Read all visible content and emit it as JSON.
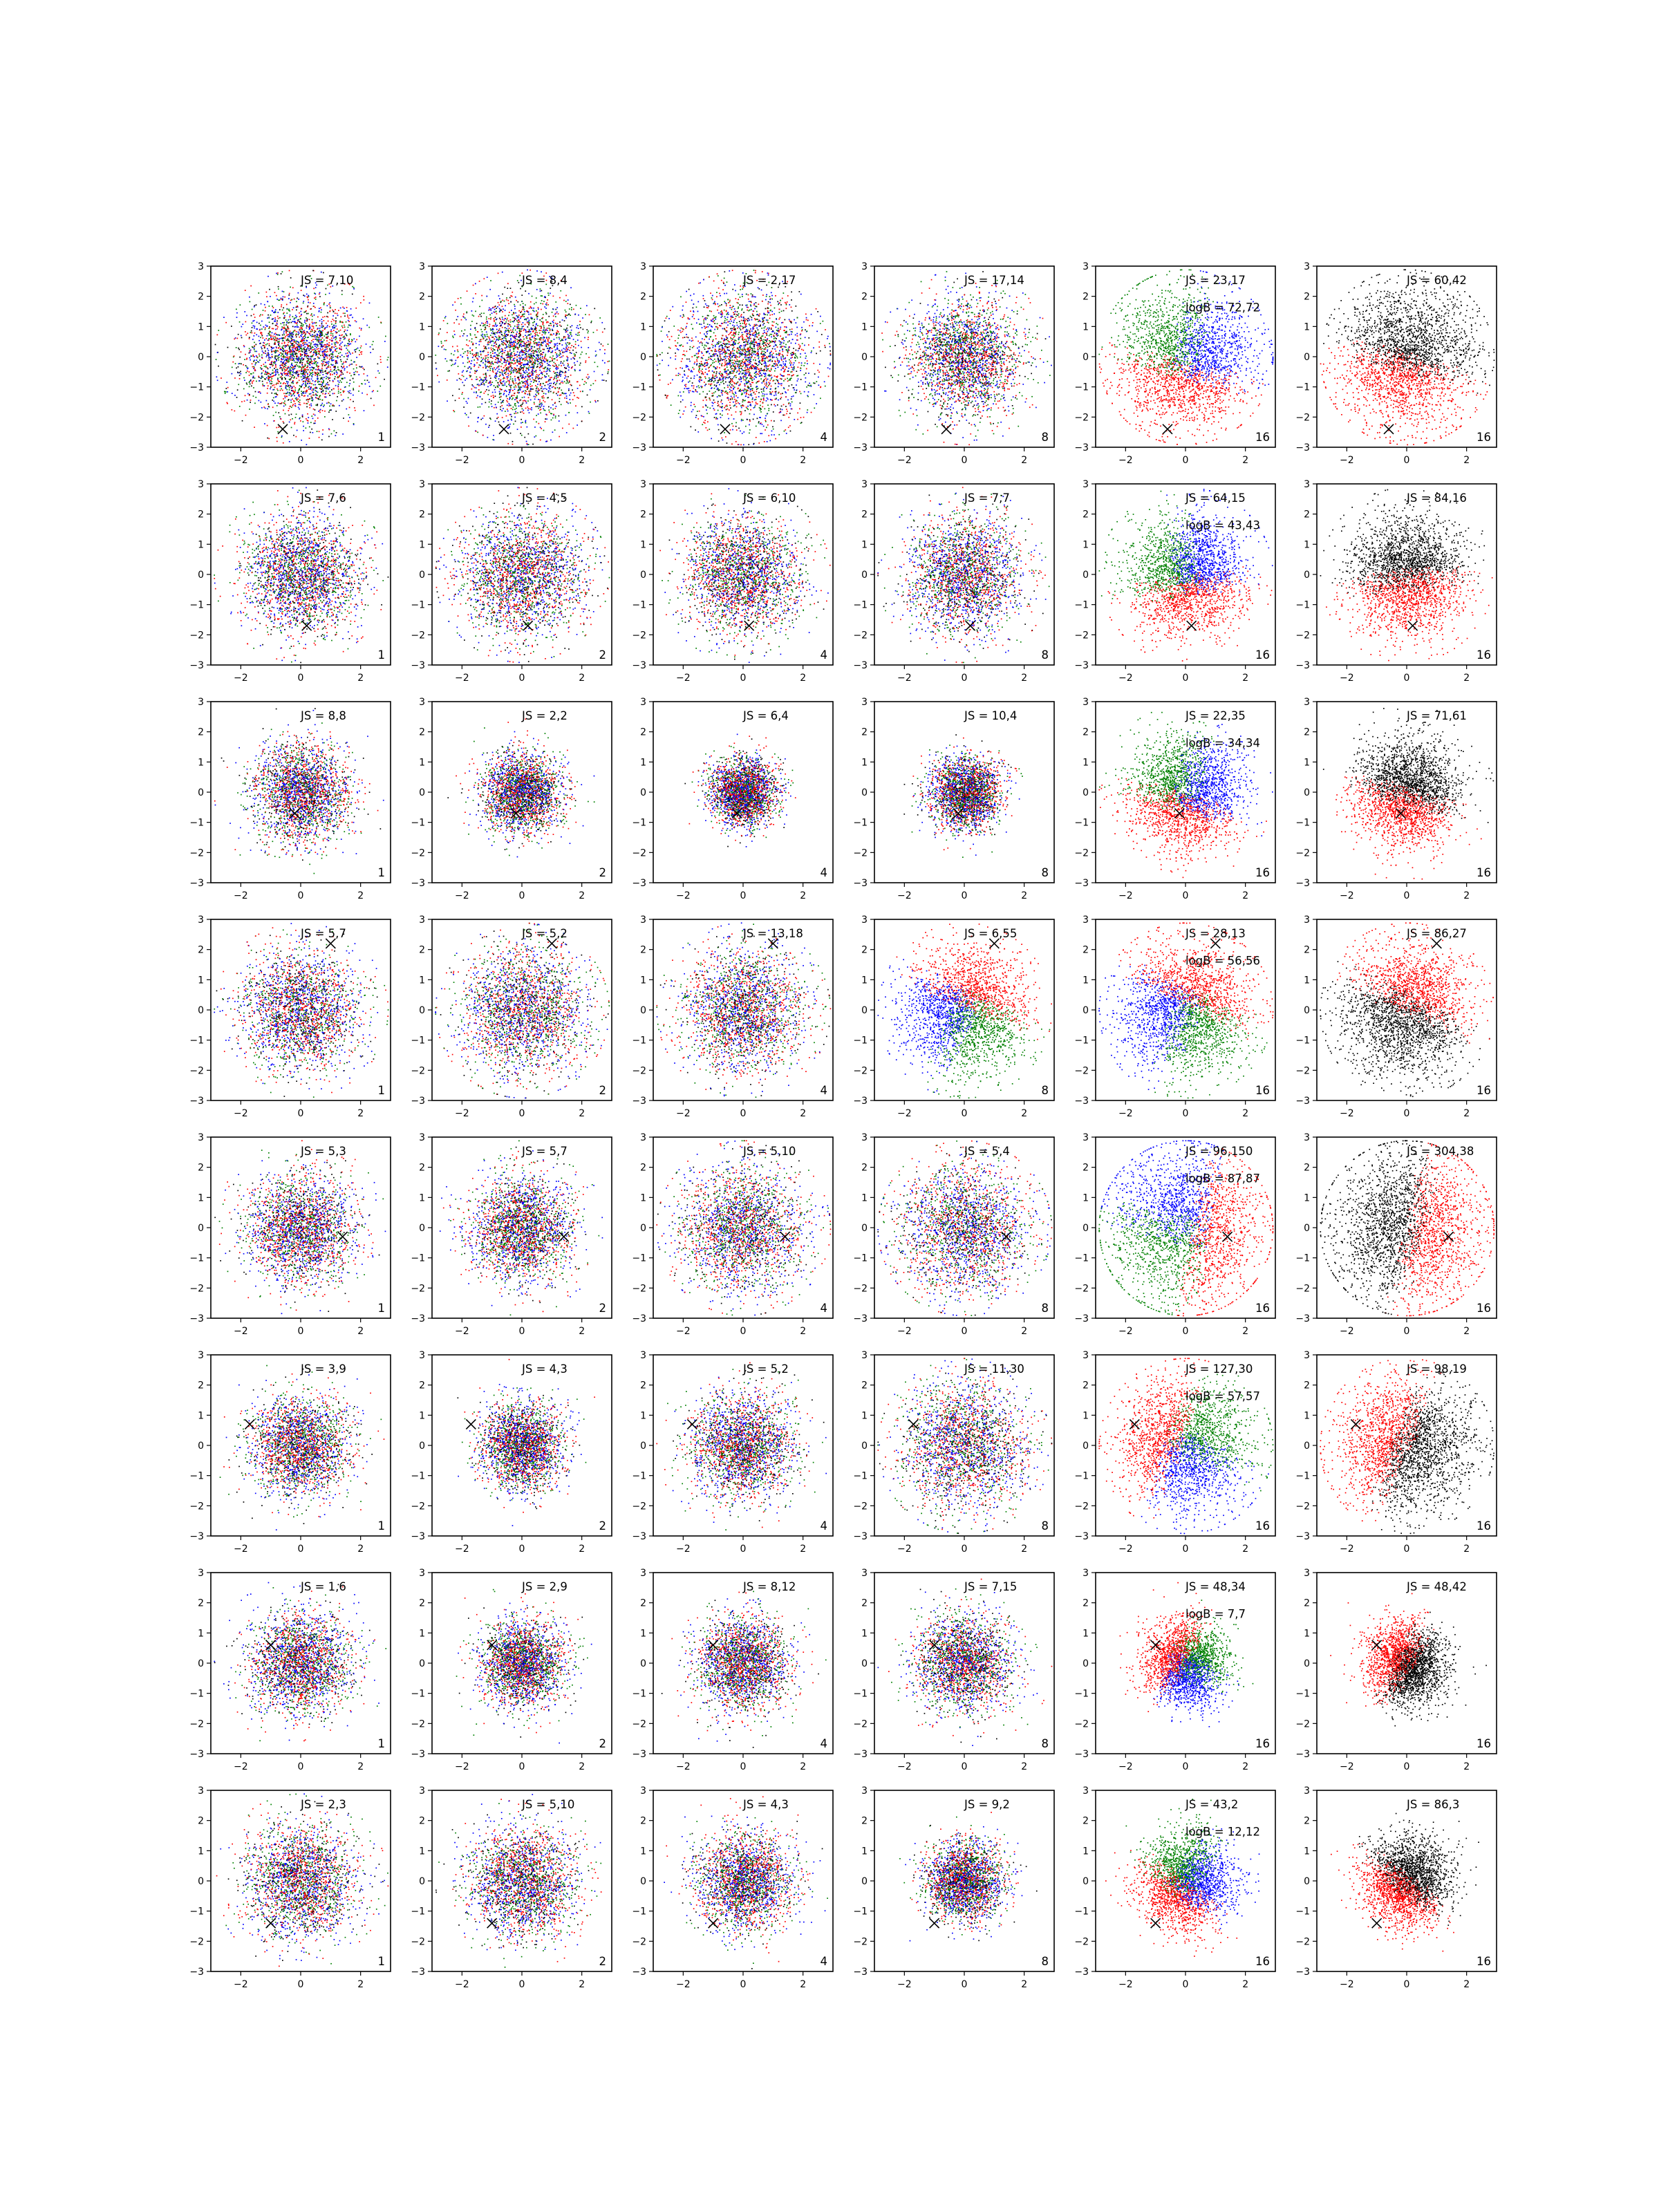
{
  "figure": {
    "rows": 8,
    "cols": 6,
    "xlim": [
      -3,
      3
    ],
    "ylim": [
      -3,
      3
    ],
    "xticks": [
      -2,
      0,
      2
    ],
    "yticks": [
      -3,
      -2,
      -1,
      0,
      1,
      2,
      3
    ],
    "colors": {
      "red": "#ff0000",
      "green": "#008000",
      "blue": "#0000ff",
      "black": "#000000"
    }
  },
  "chart_data": {
    "type": "scatter",
    "title": "",
    "description_of_marks": "grid of scatter panels; each panel has a black x marker, a JS annotation, optional logB annotation, and a scale number in the lower-right corner",
    "grid": [
      {
        "marker": [
          -0.6,
          -2.4
        ],
        "panels": [
          {
            "js": "JS = 7,10",
            "logb": "",
            "scale": "1",
            "spread": 1.0,
            "style": "mix"
          },
          {
            "js": "JS = 8,4",
            "logb": "",
            "scale": "2",
            "spread": 1.05,
            "style": "mix"
          },
          {
            "js": "JS = 2,17",
            "logb": "",
            "scale": "4",
            "spread": 1.1,
            "style": "mix"
          },
          {
            "js": "JS = 17,14",
            "logb": "",
            "scale": "8",
            "spread": 0.95,
            "style": "mix"
          },
          {
            "js": "JS = 23,17",
            "logb": "logB = 72,72",
            "scale": "16",
            "spread": 1.1,
            "style": "sep"
          },
          {
            "js": "JS = 60,42",
            "logb": "",
            "scale": "16",
            "spread": 1.1,
            "style": "rb"
          }
        ]
      },
      {
        "marker": [
          0.2,
          -1.7
        ],
        "panels": [
          {
            "js": "JS = 7,6",
            "logb": "",
            "scale": "1",
            "spread": 0.95,
            "style": "mix"
          },
          {
            "js": "JS = 4,5",
            "logb": "",
            "scale": "2",
            "spread": 1.05,
            "style": "mix"
          },
          {
            "js": "JS = 6,10",
            "logb": "",
            "scale": "4",
            "spread": 0.95,
            "style": "mix"
          },
          {
            "js": "JS = 7,7",
            "logb": "",
            "scale": "8",
            "spread": 0.95,
            "style": "mix"
          },
          {
            "js": "JS = 64,15",
            "logb": "logB = 43,43",
            "scale": "16",
            "spread": 0.95,
            "style": "sep"
          },
          {
            "js": "JS = 84,16",
            "logb": "",
            "scale": "16",
            "spread": 0.95,
            "style": "rb"
          }
        ]
      },
      {
        "marker": [
          -0.2,
          -0.7
        ],
        "panels": [
          {
            "js": "JS = 8,8",
            "logb": "",
            "scale": "1",
            "spread": 0.8,
            "style": "mix"
          },
          {
            "js": "JS = 2,2",
            "logb": "",
            "scale": "2",
            "spread": 0.65,
            "style": "mix"
          },
          {
            "js": "JS = 6,4",
            "logb": "",
            "scale": "4",
            "spread": 0.55,
            "style": "mix"
          },
          {
            "js": "JS = 10,4",
            "logb": "",
            "scale": "8",
            "spread": 0.6,
            "style": "mix"
          },
          {
            "js": "JS = 22,35",
            "logb": "logB = 34,34",
            "scale": "16",
            "spread": 0.9,
            "style": "sep"
          },
          {
            "js": "JS = 71,61",
            "logb": "",
            "scale": "16",
            "spread": 0.85,
            "style": "rb"
          }
        ]
      },
      {
        "marker": [
          1.0,
          2.2
        ],
        "panels": [
          {
            "js": "JS = 5,7",
            "logb": "",
            "scale": "1",
            "spread": 1.0,
            "style": "mix"
          },
          {
            "js": "JS = 5,2",
            "logb": "",
            "scale": "2",
            "spread": 1.05,
            "style": "mix"
          },
          {
            "js": "JS = 13,18",
            "logb": "",
            "scale": "4",
            "spread": 1.0,
            "style": "mix"
          },
          {
            "js": "JS = 6,55",
            "logb": "",
            "scale": "8",
            "spread": 1.0,
            "style": "sep"
          },
          {
            "js": "JS = 28,13",
            "logb": "logB = 56,56",
            "scale": "16",
            "spread": 1.05,
            "style": "sep"
          },
          {
            "js": "JS = 86,27",
            "logb": "",
            "scale": "16",
            "spread": 1.05,
            "style": "rb"
          }
        ]
      },
      {
        "marker": [
          1.4,
          -0.3
        ],
        "panels": [
          {
            "js": "JS = 5,3",
            "logb": "",
            "scale": "1",
            "spread": 0.9,
            "style": "mix"
          },
          {
            "js": "JS = 5,7",
            "logb": "",
            "scale": "2",
            "spread": 0.85,
            "style": "mix"
          },
          {
            "js": "JS = 5,10",
            "logb": "",
            "scale": "4",
            "spread": 1.05,
            "style": "mix"
          },
          {
            "js": "JS = 5,4",
            "logb": "",
            "scale": "8",
            "spread": 1.1,
            "style": "mix"
          },
          {
            "js": "JS = 96,150",
            "logb": "logB = 87,87",
            "scale": "16",
            "spread": 1.25,
            "style": "sep"
          },
          {
            "js": "JS = 304,38",
            "logb": "",
            "scale": "16",
            "spread": 1.25,
            "style": "rb"
          }
        ]
      },
      {
        "marker": [
          -1.7,
          0.7
        ],
        "panels": [
          {
            "js": "JS = 3,9",
            "logb": "",
            "scale": "1",
            "spread": 0.8,
            "style": "mix"
          },
          {
            "js": "JS = 4,3",
            "logb": "",
            "scale": "2",
            "spread": 0.7,
            "style": "mix"
          },
          {
            "js": "JS = 5,2",
            "logb": "",
            "scale": "4",
            "spread": 0.85,
            "style": "mix"
          },
          {
            "js": "JS = 11,30",
            "logb": "",
            "scale": "8",
            "spread": 1.05,
            "style": "mix"
          },
          {
            "js": "JS = 127,30",
            "logb": "logB = 57,57",
            "scale": "16",
            "spread": 1.05,
            "style": "sep"
          },
          {
            "js": "JS = 98,19",
            "logb": "",
            "scale": "16",
            "spread": 1.05,
            "style": "rb"
          }
        ]
      },
      {
        "marker": [
          -1.0,
          0.6
        ],
        "panels": [
          {
            "js": "JS = 1,6",
            "logb": "",
            "scale": "1",
            "spread": 0.85,
            "style": "mix"
          },
          {
            "js": "JS = 2,9",
            "logb": "",
            "scale": "2",
            "spread": 0.7,
            "style": "mix"
          },
          {
            "js": "JS = 8,12",
            "logb": "",
            "scale": "4",
            "spread": 0.75,
            "style": "mix"
          },
          {
            "js": "JS = 7,15",
            "logb": "",
            "scale": "8",
            "spread": 0.8,
            "style": "mix"
          },
          {
            "js": "JS = 48,34",
            "logb": "logB = 7,7",
            "scale": "16",
            "spread": 0.65,
            "style": "sep"
          },
          {
            "js": "JS = 48,42",
            "logb": "",
            "scale": "16",
            "spread": 0.65,
            "style": "rb"
          }
        ]
      },
      {
        "marker": [
          -1.0,
          -1.4
        ],
        "panels": [
          {
            "js": "JS = 2,3",
            "logb": "",
            "scale": "1",
            "spread": 0.95,
            "style": "mix"
          },
          {
            "js": "JS = 5,10",
            "logb": "",
            "scale": "2",
            "spread": 0.9,
            "style": "mix"
          },
          {
            "js": "JS = 4,3",
            "logb": "",
            "scale": "4",
            "spread": 0.8,
            "style": "mix"
          },
          {
            "js": "JS = 9,2",
            "logb": "",
            "scale": "8",
            "spread": 0.65,
            "style": "mix"
          },
          {
            "js": "JS = 43,2",
            "logb": "logB = 12,12",
            "scale": "16",
            "spread": 0.75,
            "style": "sep"
          },
          {
            "js": "JS = 86,3",
            "logb": "",
            "scale": "16",
            "spread": 0.7,
            "style": "rb"
          }
        ]
      }
    ]
  }
}
